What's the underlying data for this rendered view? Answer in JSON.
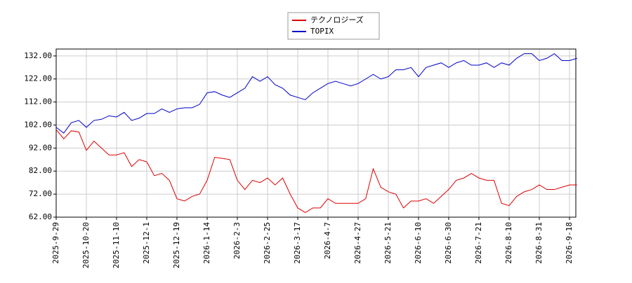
{
  "chart_data": {
    "type": "line",
    "categories": [
      "2025-9-29",
      null,
      null,
      null,
      "2025-10-20",
      null,
      null,
      null,
      "2025-11-10",
      null,
      null,
      null,
      "2025-12-1",
      null,
      null,
      null,
      "2025-12-19",
      null,
      null,
      null,
      "2026-1-14",
      null,
      null,
      null,
      "2026-2-3",
      null,
      null,
      null,
      "2026-2-25",
      null,
      null,
      null,
      "2026-3-17",
      null,
      null,
      null,
      "2026-4-7",
      null,
      null,
      null,
      "2026-4-27",
      null,
      null,
      null,
      "2026-5-21",
      null,
      null,
      null,
      "2026-6-10",
      null,
      null,
      null,
      "2026-6-30",
      null,
      null,
      null,
      "2026-7-21",
      null,
      null,
      null,
      "2026-8-10",
      null,
      null,
      null,
      "2026-8-31",
      null,
      null,
      null,
      "2026-9-18",
      null
    ],
    "series": [
      {
        "name": "テクノロジーズ",
        "color": "#dd0000",
        "values": [
          100,
          96,
          99.5,
          99,
          91,
          95,
          92,
          89,
          89,
          90,
          84,
          87,
          86,
          80,
          81,
          78,
          70,
          69,
          71,
          72,
          78,
          88,
          87.5,
          87,
          78,
          74,
          78,
          77,
          79,
          76,
          79,
          72,
          66,
          64,
          66,
          66,
          70,
          68,
          68,
          68,
          68,
          70,
          83,
          75,
          73,
          72,
          66,
          69,
          69,
          70,
          68,
          71,
          74,
          78,
          79,
          81,
          79,
          78,
          78,
          68,
          67,
          71,
          73,
          74,
          76,
          74,
          74,
          75,
          76,
          76
        ]
      },
      {
        "name": "TOPIX",
        "color": "#0000cc",
        "values": [
          101,
          98.5,
          103,
          104,
          101,
          104,
          104.5,
          106,
          105.5,
          107.5,
          104,
          105,
          107,
          107,
          109,
          107.5,
          109,
          109.5,
          109.5,
          111,
          116,
          116.5,
          115,
          114,
          116,
          118,
          123,
          121,
          123,
          119.5,
          118,
          115,
          114,
          113,
          116,
          118,
          120,
          121,
          120,
          119,
          120,
          122,
          124,
          122,
          123,
          126,
          126,
          127,
          123,
          127,
          128,
          129,
          127,
          129,
          130,
          128,
          128,
          129,
          127,
          129,
          128,
          131,
          133,
          133,
          130,
          131,
          133,
          130,
          130,
          131
        ]
      }
    ],
    "ylim": [
      62,
      135
    ],
    "yticks": [
      {
        "value": 62,
        "label": "62.00"
      },
      {
        "value": 72,
        "label": "72.00"
      },
      {
        "value": 82,
        "label": "82.00"
      },
      {
        "value": 92,
        "label": "92.00"
      },
      {
        "value": 102,
        "label": "102.00"
      },
      {
        "value": 112,
        "label": "112.00"
      },
      {
        "value": 122,
        "label": "122.00"
      },
      {
        "value": 132,
        "label": "132.00"
      }
    ],
    "grid": true,
    "legend": "top"
  }
}
